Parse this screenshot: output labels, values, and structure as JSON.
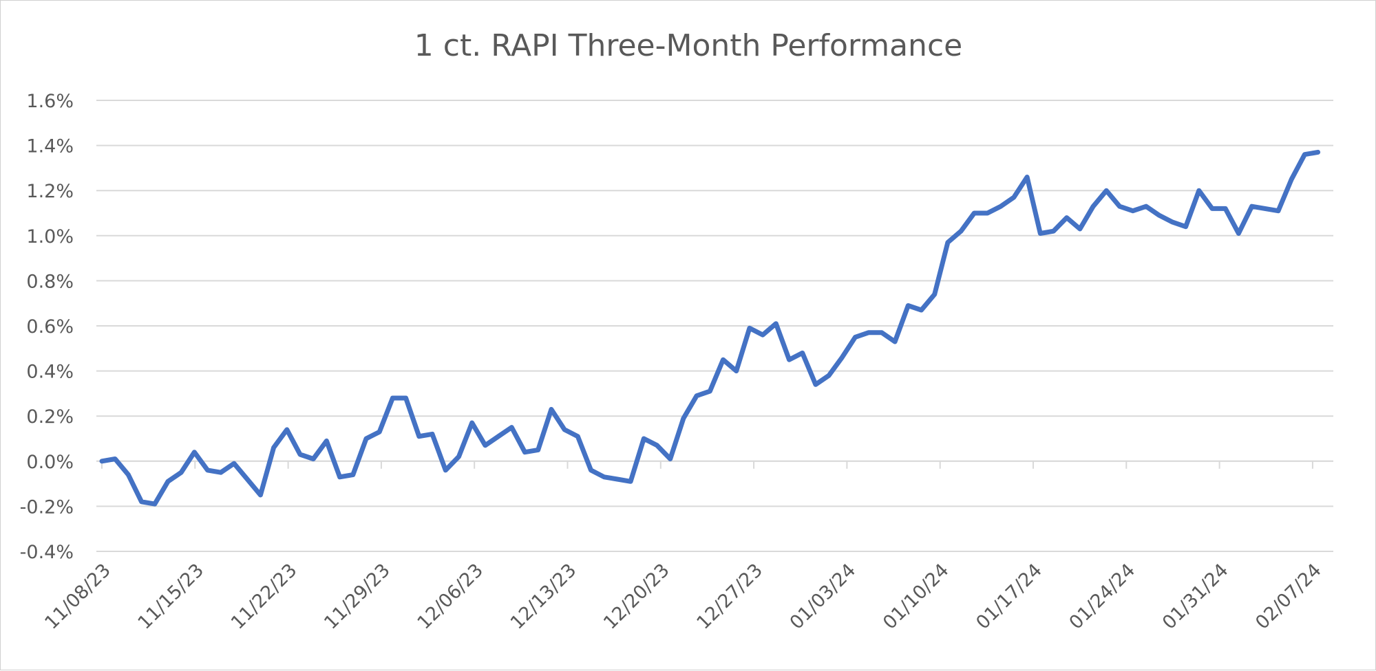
{
  "chart_data": {
    "type": "line",
    "title": "1 ct. RAPI Three-Month Performance",
    "xlabel": "",
    "ylabel": "",
    "ylim": [
      -0.4,
      1.6
    ],
    "y_ticks": [
      "-0.4%",
      "-0.2%",
      "0.0%",
      "0.2%",
      "0.4%",
      "0.6%",
      "0.8%",
      "1.0%",
      "1.2%",
      "1.4%",
      "1.6%"
    ],
    "x_tick_labels": [
      "11/08/23",
      "11/15/23",
      "11/22/23",
      "11/29/23",
      "12/06/23",
      "12/13/23",
      "12/20/23",
      "12/27/23",
      "01/03/24",
      "01/10/24",
      "01/17/24",
      "01/24/24",
      "01/31/24",
      "02/07/24"
    ],
    "grid": true,
    "legend": "none",
    "series_color": "#4472c4",
    "series": [
      {
        "values": [
          0.0,
          0.01,
          -0.06,
          -0.18,
          -0.19,
          -0.09,
          -0.05,
          0.04,
          -0.04,
          -0.05,
          -0.01,
          -0.08,
          -0.15,
          0.06,
          0.14,
          0.03,
          0.01,
          0.09,
          -0.07,
          -0.06,
          0.1,
          0.13,
          0.28,
          0.28,
          0.11,
          0.12,
          -0.04,
          0.02,
          0.17,
          0.07,
          0.11,
          0.15,
          0.04,
          0.05,
          0.23,
          0.14,
          0.11,
          -0.04,
          -0.07,
          -0.08,
          -0.09,
          0.1,
          0.07,
          0.01,
          0.19,
          0.29,
          0.31,
          0.45,
          0.4,
          0.59,
          0.56,
          0.61,
          0.45,
          0.48,
          0.34,
          0.38,
          0.46,
          0.55,
          0.57,
          0.57,
          0.53,
          0.69,
          0.67,
          0.74,
          0.97,
          1.02,
          1.1,
          1.1,
          1.13,
          1.17,
          1.26,
          1.01,
          1.02,
          1.08,
          1.03,
          1.13,
          1.2,
          1.13,
          1.11,
          1.13,
          1.09,
          1.06,
          1.04,
          1.2,
          1.12,
          1.12,
          1.01,
          1.13,
          1.12,
          1.11,
          1.25,
          1.36,
          1.37
        ]
      }
    ]
  }
}
